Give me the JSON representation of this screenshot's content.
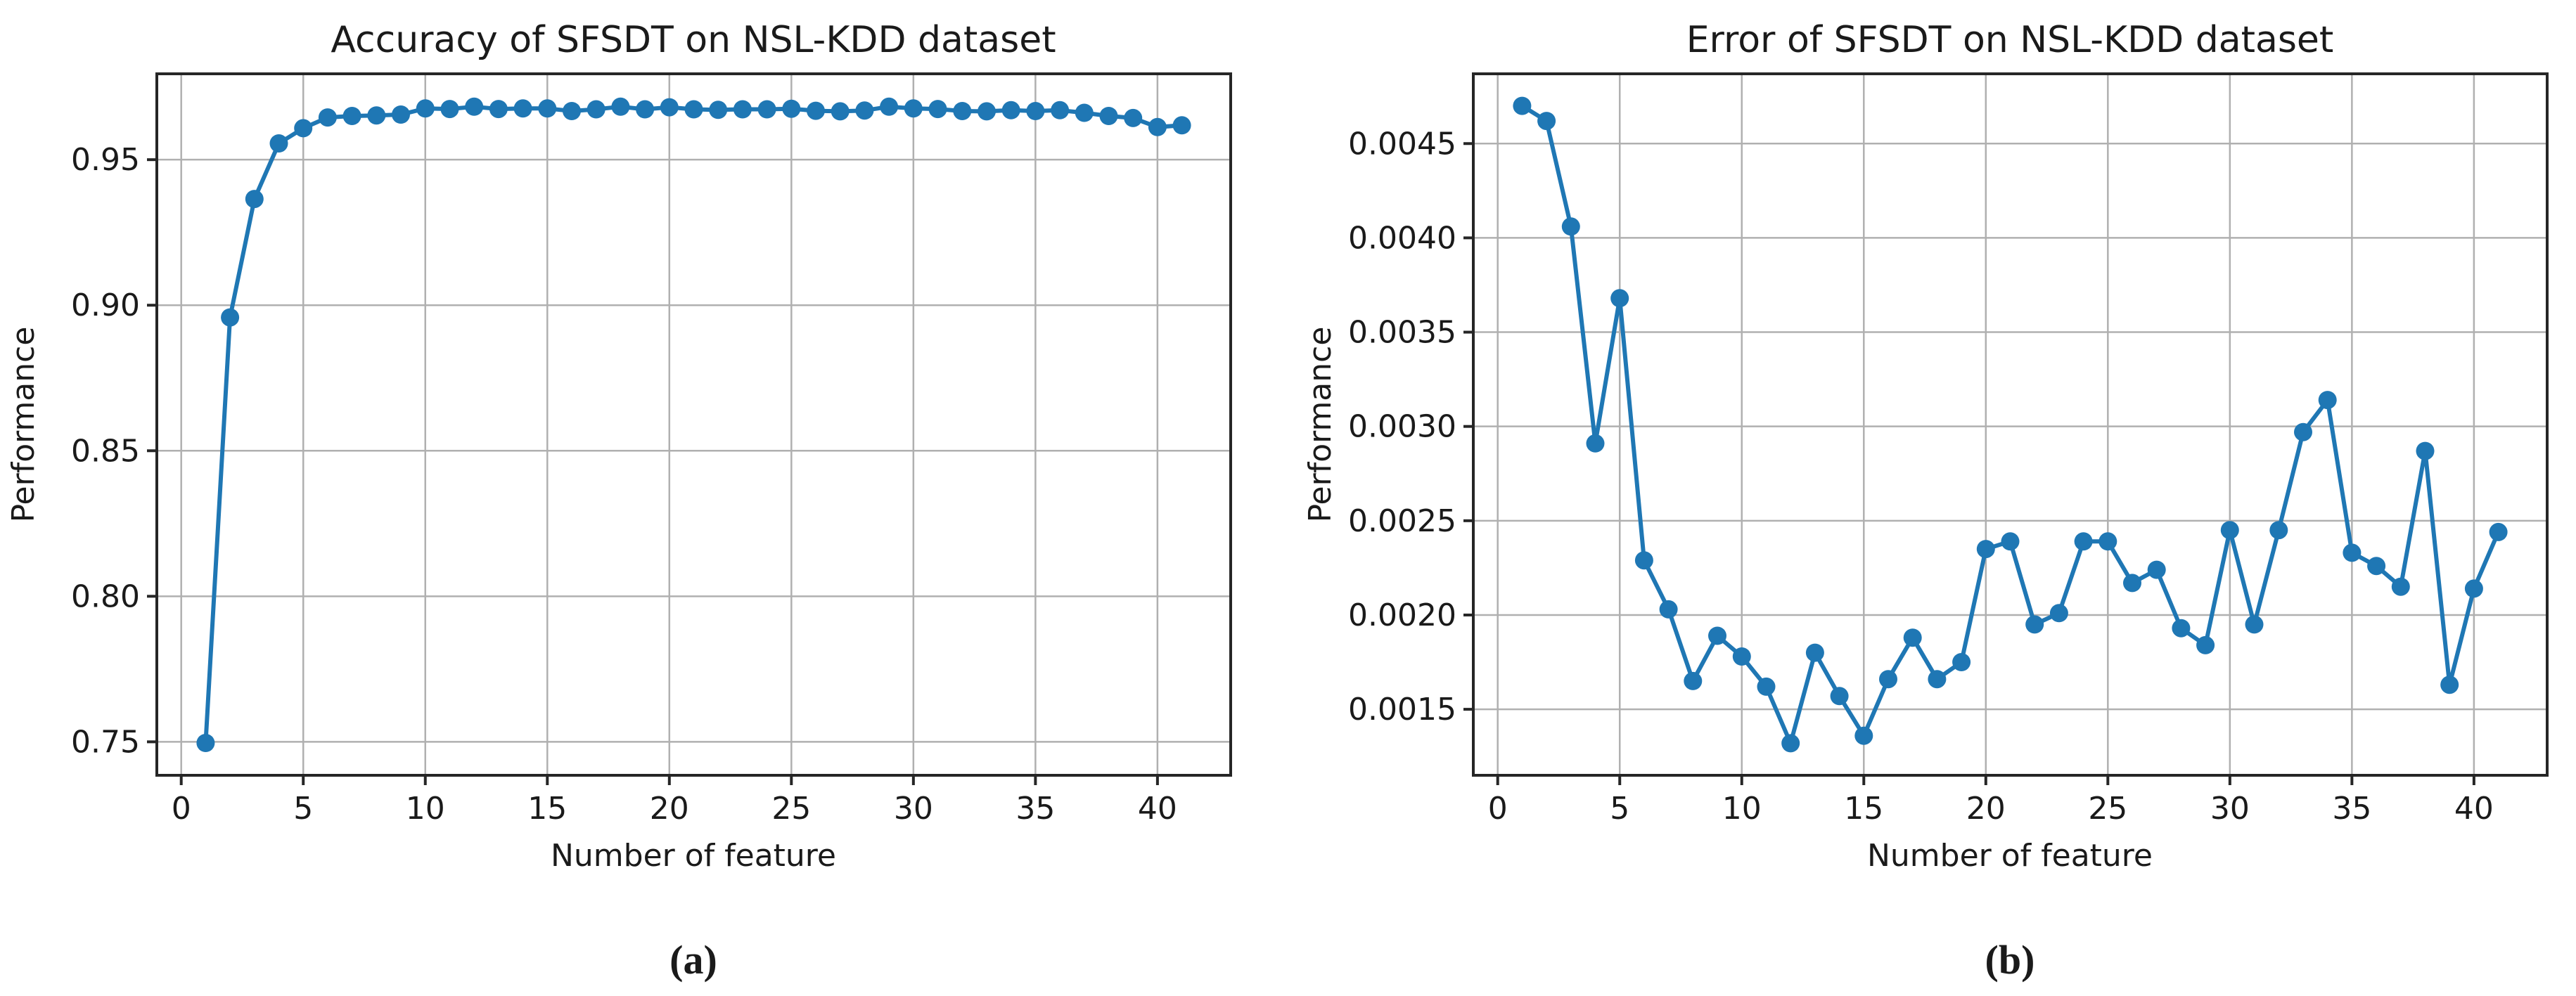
{
  "figure": {
    "background": "#ffffff",
    "caption_a": "(a)",
    "caption_b": "(b)"
  },
  "colors": {
    "series": "#1f77b4",
    "grid": "#b0b0b0",
    "spine": "#262626",
    "text": "#1a1a1a"
  },
  "chart_data": [
    {
      "type": "line",
      "title": "Accuracy of SFSDT on NSL-KDD dataset",
      "xlabel": "Number of feature",
      "ylabel": "Performance",
      "caption": "(a)",
      "legend": null,
      "grid": true,
      "marker": "circle",
      "xlim": [
        -1,
        43
      ],
      "ylim": [
        0.7385,
        0.9795
      ],
      "xticks": [
        0,
        5,
        10,
        15,
        20,
        25,
        30,
        35,
        40
      ],
      "xtick_labels": [
        "0",
        "5",
        "10",
        "15",
        "20",
        "25",
        "30",
        "35",
        "40"
      ],
      "yticks": [
        0.75,
        0.8,
        0.85,
        0.9,
        0.95
      ],
      "ytick_labels": [
        "0.75",
        "0.80",
        "0.85",
        "0.90",
        "0.95"
      ],
      "x": [
        1,
        2,
        3,
        4,
        5,
        6,
        7,
        8,
        9,
        10,
        11,
        12,
        13,
        14,
        15,
        16,
        17,
        18,
        19,
        20,
        21,
        22,
        23,
        24,
        25,
        26,
        27,
        28,
        29,
        30,
        31,
        32,
        33,
        34,
        35,
        36,
        37,
        38,
        39,
        40,
        41
      ],
      "y": [
        0.7496,
        0.8958,
        0.9365,
        0.9556,
        0.9608,
        0.9645,
        0.965,
        0.9652,
        0.9655,
        0.9676,
        0.9674,
        0.9682,
        0.9674,
        0.9676,
        0.9676,
        0.9667,
        0.9673,
        0.9682,
        0.9673,
        0.968,
        0.9673,
        0.9671,
        0.9673,
        0.9673,
        0.9675,
        0.9668,
        0.9666,
        0.9669,
        0.9682,
        0.9676,
        0.9674,
        0.9667,
        0.9666,
        0.967,
        0.9667,
        0.967,
        0.9661,
        0.965,
        0.9643,
        0.9612,
        0.9618
      ]
    },
    {
      "type": "line",
      "title": "Error of SFSDT on NSL-KDD dataset",
      "xlabel": "Number of feature",
      "ylabel": "Performance",
      "caption": "(b)",
      "legend": null,
      "grid": true,
      "marker": "circle",
      "xlim": [
        -1,
        43
      ],
      "ylim": [
        0.00115,
        0.00487
      ],
      "xticks": [
        0,
        5,
        10,
        15,
        20,
        25,
        30,
        35,
        40
      ],
      "xtick_labels": [
        "0",
        "5",
        "10",
        "15",
        "20",
        "25",
        "30",
        "35",
        "40"
      ],
      "yticks": [
        0.0015,
        0.002,
        0.0025,
        0.003,
        0.0035,
        0.004,
        0.0045
      ],
      "ytick_labels": [
        "0.0015",
        "0.0020",
        "0.0025",
        "0.0030",
        "0.0035",
        "0.0040",
        "0.0045"
      ],
      "x": [
        1,
        2,
        3,
        4,
        5,
        6,
        7,
        8,
        9,
        10,
        11,
        12,
        13,
        14,
        15,
        16,
        17,
        18,
        19,
        20,
        21,
        22,
        23,
        24,
        25,
        26,
        27,
        28,
        29,
        30,
        31,
        32,
        33,
        34,
        35,
        36,
        37,
        38,
        39,
        40,
        41
      ],
      "y": [
        0.0047,
        0.00462,
        0.00406,
        0.00291,
        0.00368,
        0.00229,
        0.00203,
        0.00165,
        0.00189,
        0.00178,
        0.00162,
        0.00132,
        0.0018,
        0.00157,
        0.00136,
        0.00166,
        0.00188,
        0.00166,
        0.00175,
        0.00235,
        0.00239,
        0.00195,
        0.00201,
        0.00239,
        0.00239,
        0.00217,
        0.00224,
        0.00193,
        0.00184,
        0.00245,
        0.00195,
        0.00245,
        0.00297,
        0.00314,
        0.00233,
        0.00226,
        0.00215,
        0.00287,
        0.00163,
        0.00214,
        0.00244
      ]
    }
  ]
}
